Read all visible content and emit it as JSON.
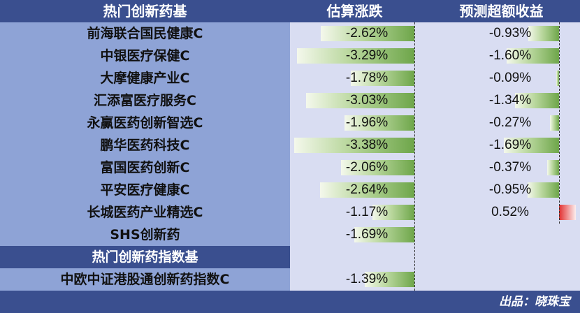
{
  "header": {
    "col_name": "热门创新药基",
    "col_est": "估算涨跌",
    "col_excess": "预测超额收益"
  },
  "funds": [
    {
      "name": "前海联合国民健康C",
      "est": -2.62,
      "est_text": "-2.62%",
      "excess": -0.93,
      "excess_text": "-0.93%"
    },
    {
      "name": "中银医疗保健C",
      "est": -3.29,
      "est_text": "-3.29%",
      "excess": -1.6,
      "excess_text": "-1.60%"
    },
    {
      "name": "大摩健康产业C",
      "est": -1.78,
      "est_text": "-1.78%",
      "excess": -0.09,
      "excess_text": "-0.09%"
    },
    {
      "name": "汇添富医疗服务C",
      "est": -3.03,
      "est_text": "-3.03%",
      "excess": -1.34,
      "excess_text": "-1.34%"
    },
    {
      "name": "永赢医药创新智选C",
      "est": -1.96,
      "est_text": "-1.96%",
      "excess": -0.27,
      "excess_text": "-0.27%"
    },
    {
      "name": "鹏华医药科技C",
      "est": -3.38,
      "est_text": "-3.38%",
      "excess": -1.69,
      "excess_text": "-1.69%"
    },
    {
      "name": "富国医药创新C",
      "est": -2.06,
      "est_text": "-2.06%",
      "excess": -0.37,
      "excess_text": "-0.37%"
    },
    {
      "name": "平安医疗健康C",
      "est": -2.64,
      "est_text": "-2.64%",
      "excess": -0.95,
      "excess_text": "-0.95%"
    },
    {
      "name": "长城医药产业精选C",
      "est": -1.17,
      "est_text": "-1.17%",
      "excess": 0.52,
      "excess_text": "0.52%"
    },
    {
      "name": "SHS创新药",
      "est": -1.69,
      "est_text": "-1.69%",
      "excess": null,
      "excess_text": ""
    }
  ],
  "index_section": {
    "title": "热门创新药指数基",
    "items": [
      {
        "name": "中欧中证港股通创新药指数C",
        "est": -1.39,
        "est_text": "-1.39%"
      }
    ]
  },
  "footer": {
    "credit": "出品：晓珠宝"
  },
  "colors": {
    "header_bg": "#3a4f8f",
    "name_bg": "#8ea3d6",
    "value_bg": "#d9ddf2",
    "neg_bar": "#6ea64a",
    "pos_bar": "#e12f2f"
  }
}
